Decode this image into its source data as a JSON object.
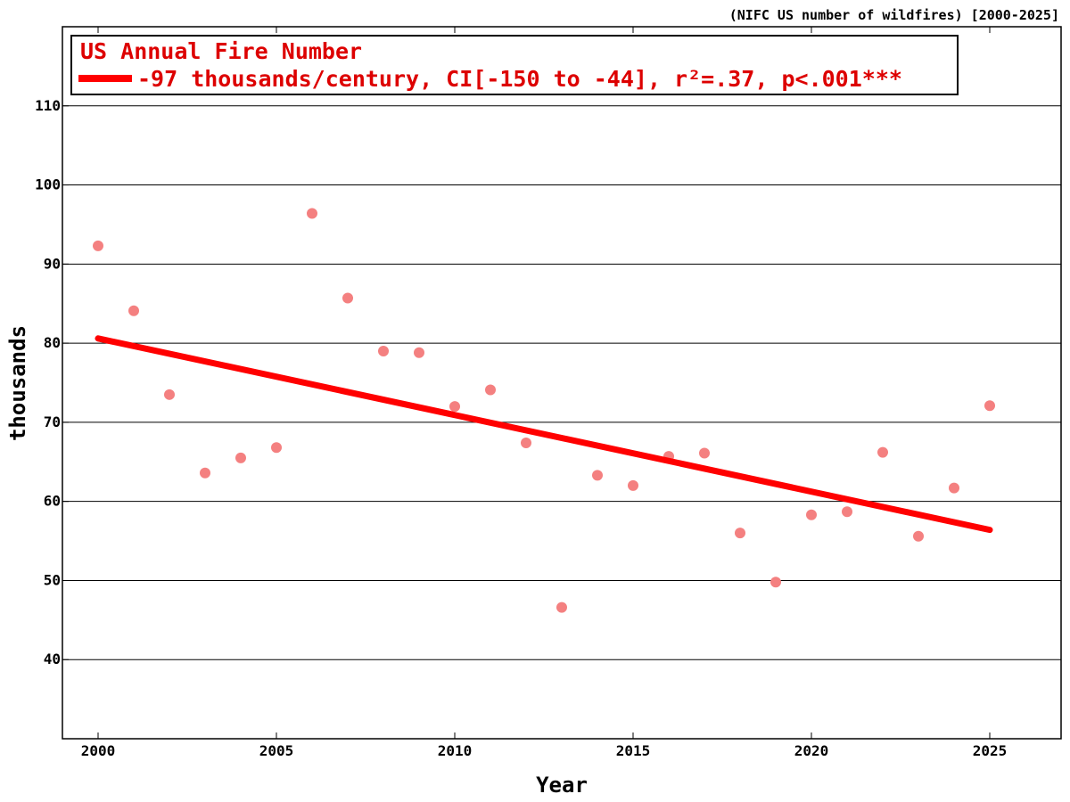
{
  "source_label": "(NIFC US number of wildfires) [2000-2025]",
  "chart_data": {
    "type": "scatter",
    "title": "",
    "xlabel": "Year",
    "ylabel": "thousands",
    "xlim": [
      1999,
      2027
    ],
    "ylim": [
      30,
      120
    ],
    "x_ticks": [
      2000,
      2005,
      2010,
      2015,
      2020,
      2025
    ],
    "y_ticks": [
      40,
      50,
      60,
      70,
      80,
      90,
      100,
      110
    ],
    "grid": "horizontal",
    "legend": {
      "placement": "top-left",
      "title": "US Annual Fire Number",
      "entry": "-97 thousands/century, CI[-150 to -44], r²=.37, p<.001***"
    },
    "colors": {
      "points": "#f48080",
      "trend": "#ff0000",
      "legend_text": "#dd0000"
    },
    "series": [
      {
        "type": "scatter",
        "x": [
          2000,
          2001,
          2002,
          2003,
          2004,
          2005,
          2006,
          2007,
          2008,
          2009,
          2010,
          2011,
          2012,
          2013,
          2014,
          2015,
          2016,
          2017,
          2018,
          2019,
          2020,
          2021,
          2022,
          2023,
          2024,
          2025
        ],
        "y": [
          92.3,
          84.1,
          73.5,
          63.6,
          65.5,
          66.8,
          96.4,
          85.7,
          79.0,
          78.8,
          72.0,
          74.1,
          67.4,
          46.6,
          63.3,
          62.0,
          65.7,
          66.1,
          56.0,
          49.8,
          58.3,
          58.7,
          66.2,
          55.6,
          61.7,
          72.1
        ]
      },
      {
        "type": "line",
        "x": [
          2000,
          2025
        ],
        "y": [
          80.6,
          56.4
        ]
      }
    ]
  }
}
